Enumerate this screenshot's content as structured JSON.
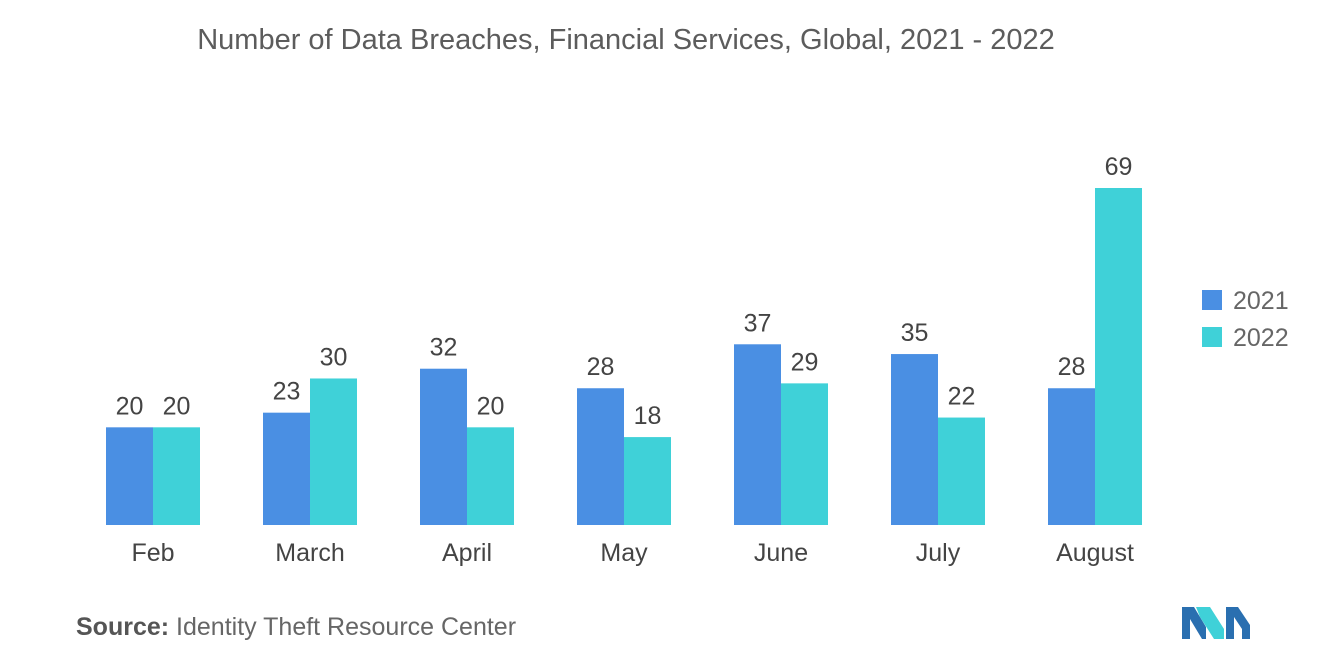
{
  "chart_data": {
    "type": "bar",
    "title": "Number of Data Breaches, Financial Services, Global, 2021 - 2022",
    "categories": [
      "Feb",
      "March",
      "April",
      "May",
      "June",
      "July",
      "August"
    ],
    "series": [
      {
        "name": "2021",
        "values": [
          20,
          23,
          32,
          28,
          37,
          35,
          28
        ],
        "color": "#4a8fe3"
      },
      {
        "name": "2022",
        "values": [
          20,
          30,
          20,
          18,
          29,
          22,
          69
        ],
        "color": "#3fd1d8"
      }
    ],
    "xlabel": "",
    "ylabel": "",
    "ylim": [
      0,
      69
    ],
    "grid": false,
    "legend_position": "right"
  },
  "source": {
    "label": "Source:",
    "text": "Identity Theft Resource Center"
  },
  "logo": {
    "icon": "mordor-intelligence-logo-icon",
    "colors": [
      "#2a6fb0",
      "#3fd1d8"
    ]
  }
}
